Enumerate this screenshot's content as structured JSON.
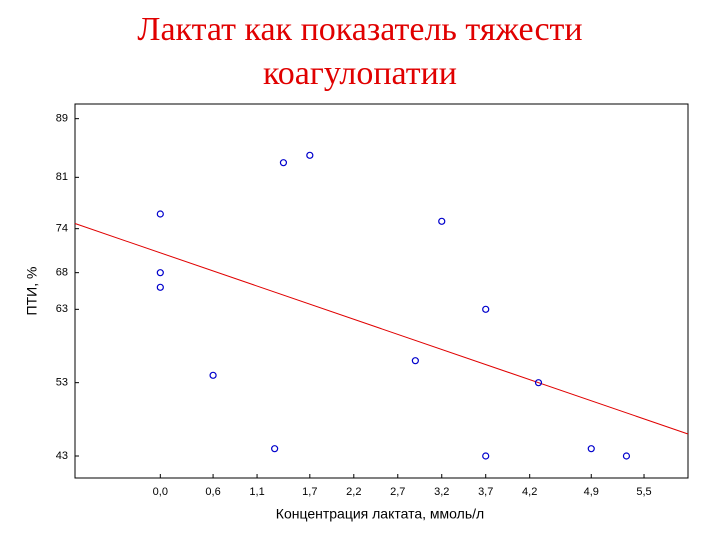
{
  "chart_data": {
    "type": "scatter",
    "title": "Лактат как показатель тяжести коагулопатии",
    "x_label": "Концентрация лактата, ммоль/л",
    "y_label": "ПТИ, %",
    "color": "#0000cc",
    "x": [
      0.0,
      0.0,
      0.0,
      0.6,
      1.3,
      1.4,
      1.7,
      2.9,
      3.2,
      3.7,
      3.7,
      4.3,
      4.9,
      5.3
    ],
    "values": [
      76,
      68,
      66,
      54,
      44,
      83,
      84,
      56,
      75,
      63,
      43,
      53,
      44,
      43
    ],
    "regression": {
      "x": [
        -0.97,
        6.0
      ],
      "y": [
        74.7,
        46.0
      ],
      "color": "#e00000"
    },
    "xlim": [
      -0.97,
      6.0
    ],
    "ylim": [
      40,
      91
    ],
    "xticks": [
      {
        "value": 0.0,
        "label": "0,0"
      },
      {
        "value": 0.6,
        "label": "0,6"
      },
      {
        "value": 1.1,
        "label": "1,1"
      },
      {
        "value": 1.7,
        "label": "1,7"
      },
      {
        "value": 2.2,
        "label": "2,2"
      },
      {
        "value": 2.7,
        "label": "2,7"
      },
      {
        "value": 3.2,
        "label": "3,2"
      },
      {
        "value": 3.7,
        "label": "3,7"
      },
      {
        "value": 4.2,
        "label": "4,2"
      },
      {
        "value": 4.9,
        "label": "4,9"
      },
      {
        "value": 5.5,
        "label": "5,5"
      }
    ],
    "yticks": [
      43,
      53,
      63,
      68,
      74,
      81,
      89
    ]
  }
}
